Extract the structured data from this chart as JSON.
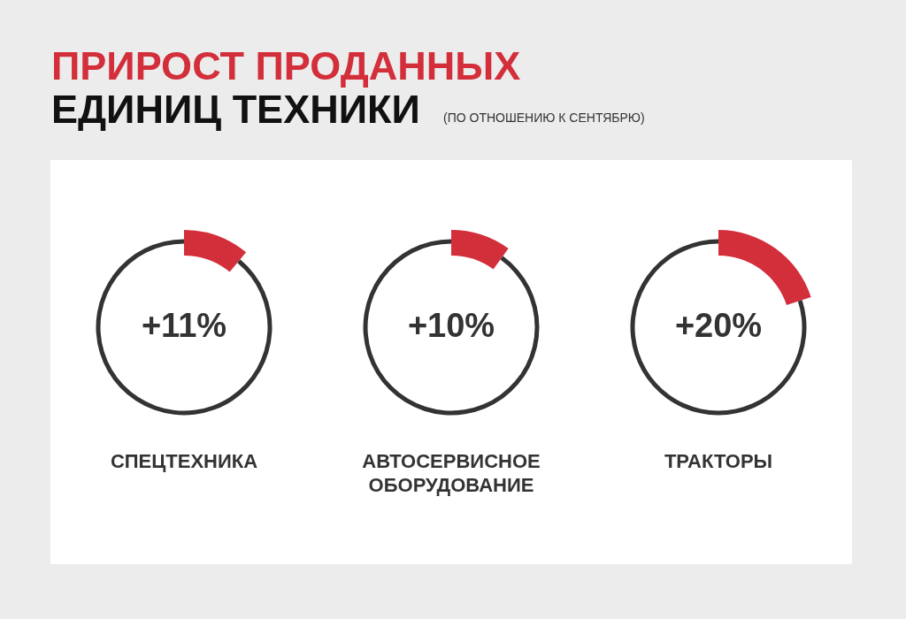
{
  "chart_data": [
    {
      "type": "donut",
      "title": "ПРИРОСТ ПРОДАННЫХ",
      "subtitle": "ЕДИНИЦ ТЕХНИКИ",
      "annotations": [
        "(ПО ОТНОШЕНИЮ К СЕНТЯБРЮ)"
      ],
      "xlabel": "СПЕЦТЕХНИКА",
      "categories": [
        null,
        null
      ],
      "values": [
        11,
        89
      ],
      "colors": [
        "#d32f3b",
        "#333333"
      ],
      "value_labels": [
        "+11%",
        null
      ]
    },
    {
      "type": "donut",
      "xlabel": "АВТОСЕРВИСНОЕ ОБОРУДОВАНИЕ",
      "categories": [
        null,
        null
      ],
      "values": [
        10,
        90
      ],
      "colors": [
        "#d32f3b",
        "#333333"
      ],
      "value_labels": [
        "+10%",
        null
      ]
    },
    {
      "type": "donut",
      "xlabel": "ТРАКТОРЫ",
      "categories": [
        null,
        null
      ],
      "values": [
        20,
        80
      ],
      "colors": [
        "#d32f3b",
        "#333333"
      ],
      "value_labels": [
        "+20%",
        null
      ]
    }
  ]
}
